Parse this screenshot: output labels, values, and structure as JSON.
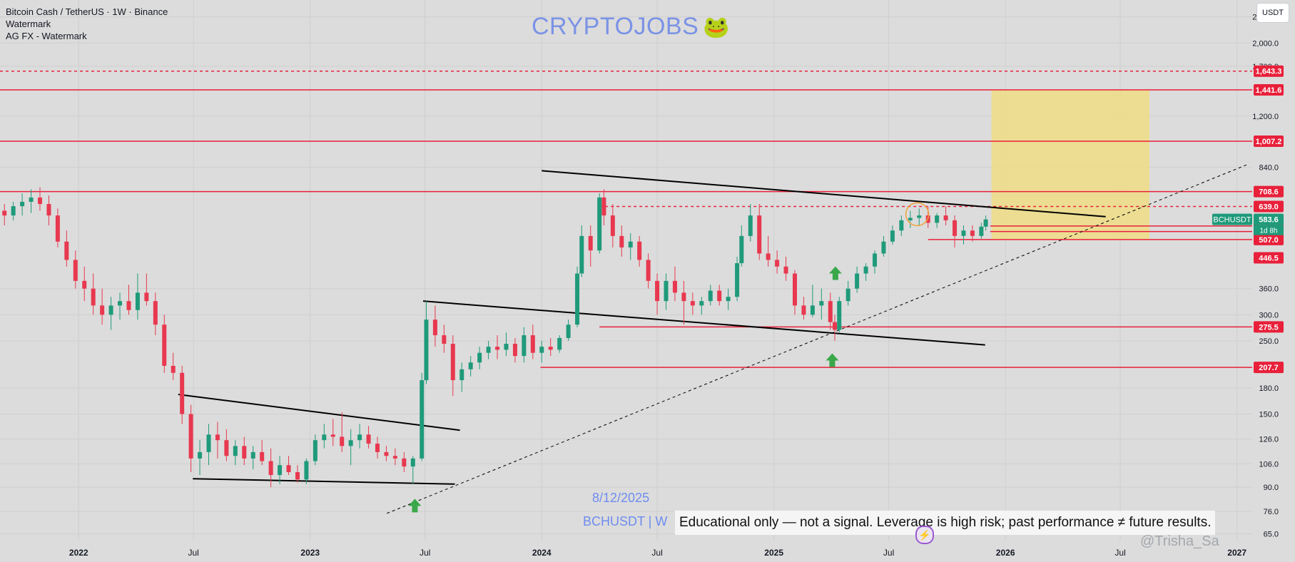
{
  "header": {
    "symbol_line": "Bitcoin Cash / TetherUS · 1W · Binance",
    "indicator_1": "Watermark",
    "indicator_2": "AG FX - Watermark"
  },
  "brand": {
    "text": "CRYPTOJOBS",
    "emoji": "🐸",
    "color": "#7b93e6"
  },
  "currency_button": "USDT",
  "stamp": {
    "date": "8/12/2025",
    "symbol": "BCHUSDT | W"
  },
  "disclaimer": "Educational only — not a signal. Leverage is high risk; past performance ≠ future results.",
  "bottom_watermark": "@Trisha_Sa",
  "colors": {
    "bg": "#dcdcdc",
    "up": "#1f9a7a",
    "down": "#e8384f",
    "level": "#e8203a",
    "trend": "#000000",
    "target_zone": "#f3de7a",
    "price_tag": "#1f9a7a",
    "arrow": "#3aa84a"
  },
  "chart_data": {
    "type": "candlestick",
    "title": "Bitcoin Cash / TetherUS · 1W · Binance",
    "symbol": "BCHUSDT",
    "y_scale": "log",
    "ylim": [
      62,
      2700
    ],
    "xlim": [
      "2021-08-30",
      "2027-01-25"
    ],
    "x_ticks": [
      {
        "date": "2022-01-01",
        "label": "2022"
      },
      {
        "date": "2022-07-01",
        "label": "Jul"
      },
      {
        "date": "2023-01-01",
        "label": "2023"
      },
      {
        "date": "2023-07-01",
        "label": "Jul"
      },
      {
        "date": "2024-01-01",
        "label": "2024"
      },
      {
        "date": "2024-07-01",
        "label": "Jul"
      },
      {
        "date": "2025-01-01",
        "label": "2025"
      },
      {
        "date": "2025-07-01",
        "label": "Jul"
      },
      {
        "date": "2026-01-01",
        "label": "2026"
      },
      {
        "date": "2026-07-01",
        "label": "Jul"
      },
      {
        "date": "2027-01-01",
        "label": "2027"
      }
    ],
    "y_ticks": [
      65,
      76,
      90,
      106,
      126,
      150,
      180,
      250,
      300,
      360,
      840,
      1200,
      1700,
      2000,
      2400
    ],
    "y_tick_labels": [
      "65.0",
      "76.0",
      "90.0",
      "106.0",
      "126.0",
      "150.0",
      "180.0",
      "250.0",
      "300.0",
      "360.0",
      "840.0",
      "1,200.0",
      "1,700.0",
      "2,000.0",
      "2,400.0"
    ],
    "horizontal_levels": [
      {
        "value": 1643.3,
        "label": "1,643.3",
        "style": "dashed"
      },
      {
        "value": 1441.6,
        "label": "1,441.6",
        "style": "solid"
      },
      {
        "value": 1007.2,
        "label": "1,007.2",
        "style": "solid"
      },
      {
        "value": 708.6,
        "label": "708.6",
        "style": "solid"
      },
      {
        "value": 639.0,
        "label": "639.0",
        "style": "dashed",
        "from": "2024-04-01"
      },
      {
        "value": 557.5,
        "label": "557.5",
        "style": "solid",
        "from": "2025-12-08"
      },
      {
        "value": 536.2,
        "label": "536.2",
        "style": "solid",
        "from": "2025-12-08"
      },
      {
        "value": 507.0,
        "label": "507.0",
        "style": "solid",
        "from": "2025-09-01"
      },
      {
        "value": 446.5,
        "label": "446.5",
        "style": "none"
      },
      {
        "value": 275.5,
        "label": "275.5",
        "style": "solid",
        "from": "2024-04-01"
      },
      {
        "value": 207.7,
        "label": "207.7",
        "style": "solid",
        "from": "2023-12-30"
      }
    ],
    "current_price": {
      "value": 583.6,
      "label": "583.6",
      "symbol": "BCHUSDT",
      "countdown": "1d 8h"
    },
    "trendlines": [
      {
        "from": [
          "2022-06-07",
          172
        ],
        "to": [
          "2023-08-25",
          134
        ],
        "style": "solid"
      },
      {
        "from": [
          "2022-06-30",
          95.5
        ],
        "to": [
          "2023-08-17",
          92
        ],
        "style": "solid"
      },
      {
        "from": [
          "2023-06-28",
          330
        ],
        "to": [
          "2025-11-30",
          243
        ],
        "style": "solid"
      },
      {
        "from": [
          "2024-01-01",
          820
        ],
        "to": [
          "2026-06-08",
          595
        ],
        "style": "solid"
      },
      {
        "from": [
          "2023-05-02",
          75
        ],
        "to": [
          "2027-01-20",
          860
        ],
        "style": "dashed"
      }
    ],
    "target_zone": {
      "from": "2025-12-10",
      "to": "2026-08-16",
      "low": 507,
      "high": 1441.6
    },
    "arrows": [
      {
        "date": "2023-06-15",
        "value": 79,
        "dir": "up"
      },
      {
        "date": "2025-04-03",
        "value": 218,
        "dir": "up"
      },
      {
        "date": "2025-04-08",
        "value": 400,
        "dir": "up"
      }
    ],
    "circle": {
      "date": "2025-08-15",
      "value": 605
    },
    "candles": [
      {
        "t": "2021-09-06",
        "o": 620,
        "h": 650,
        "l": 560,
        "c": 600
      },
      {
        "t": "2021-09-20",
        "o": 600,
        "h": 660,
        "l": 580,
        "c": 640
      },
      {
        "t": "2021-10-04",
        "o": 640,
        "h": 700,
        "l": 600,
        "c": 660
      },
      {
        "t": "2021-10-18",
        "o": 660,
        "h": 720,
        "l": 610,
        "c": 680
      },
      {
        "t": "2021-11-01",
        "o": 680,
        "h": 730,
        "l": 620,
        "c": 650
      },
      {
        "t": "2021-11-15",
        "o": 650,
        "h": 690,
        "l": 560,
        "c": 600
      },
      {
        "t": "2021-11-29",
        "o": 600,
        "h": 630,
        "l": 480,
        "c": 500
      },
      {
        "t": "2021-12-13",
        "o": 500,
        "h": 540,
        "l": 420,
        "c": 440
      },
      {
        "t": "2021-12-27",
        "o": 440,
        "h": 470,
        "l": 360,
        "c": 380
      },
      {
        "t": "2022-01-10",
        "o": 380,
        "h": 420,
        "l": 330,
        "c": 360
      },
      {
        "t": "2022-01-24",
        "o": 360,
        "h": 400,
        "l": 300,
        "c": 320
      },
      {
        "t": "2022-02-07",
        "o": 320,
        "h": 360,
        "l": 280,
        "c": 300
      },
      {
        "t": "2022-02-21",
        "o": 300,
        "h": 340,
        "l": 270,
        "c": 320
      },
      {
        "t": "2022-03-07",
        "o": 320,
        "h": 350,
        "l": 290,
        "c": 330
      },
      {
        "t": "2022-03-21",
        "o": 330,
        "h": 370,
        "l": 300,
        "c": 310
      },
      {
        "t": "2022-04-04",
        "o": 310,
        "h": 400,
        "l": 290,
        "c": 350
      },
      {
        "t": "2022-04-18",
        "o": 350,
        "h": 400,
        "l": 320,
        "c": 330
      },
      {
        "t": "2022-05-02",
        "o": 330,
        "h": 350,
        "l": 260,
        "c": 280
      },
      {
        "t": "2022-05-16",
        "o": 280,
        "h": 300,
        "l": 200,
        "c": 210
      },
      {
        "t": "2022-05-30",
        "o": 210,
        "h": 230,
        "l": 190,
        "c": 200
      },
      {
        "t": "2022-06-13",
        "o": 200,
        "h": 210,
        "l": 140,
        "c": 150
      },
      {
        "t": "2022-06-27",
        "o": 150,
        "h": 160,
        "l": 100,
        "c": 110
      },
      {
        "t": "2022-07-11",
        "o": 110,
        "h": 125,
        "l": 98,
        "c": 115
      },
      {
        "t": "2022-07-25",
        "o": 115,
        "h": 140,
        "l": 105,
        "c": 130
      },
      {
        "t": "2022-08-08",
        "o": 130,
        "h": 142,
        "l": 110,
        "c": 125
      },
      {
        "t": "2022-08-22",
        "o": 125,
        "h": 135,
        "l": 108,
        "c": 112
      },
      {
        "t": "2022-09-05",
        "o": 112,
        "h": 125,
        "l": 105,
        "c": 120
      },
      {
        "t": "2022-09-19",
        "o": 120,
        "h": 128,
        "l": 105,
        "c": 110
      },
      {
        "t": "2022-10-03",
        "o": 110,
        "h": 120,
        "l": 102,
        "c": 115
      },
      {
        "t": "2022-10-17",
        "o": 115,
        "h": 125,
        "l": 105,
        "c": 108
      },
      {
        "t": "2022-10-31",
        "o": 108,
        "h": 118,
        "l": 90,
        "c": 98
      },
      {
        "t": "2022-11-14",
        "o": 98,
        "h": 112,
        "l": 92,
        "c": 105
      },
      {
        "t": "2022-11-28",
        "o": 105,
        "h": 112,
        "l": 98,
        "c": 100
      },
      {
        "t": "2022-12-12",
        "o": 100,
        "h": 105,
        "l": 93,
        "c": 95
      },
      {
        "t": "2022-12-26",
        "o": 95,
        "h": 110,
        "l": 92,
        "c": 108
      },
      {
        "t": "2023-01-09",
        "o": 108,
        "h": 130,
        "l": 105,
        "c": 125
      },
      {
        "t": "2023-01-23",
        "o": 125,
        "h": 140,
        "l": 118,
        "c": 130
      },
      {
        "t": "2023-02-06",
        "o": 130,
        "h": 145,
        "l": 120,
        "c": 128
      },
      {
        "t": "2023-02-20",
        "o": 128,
        "h": 152,
        "l": 115,
        "c": 120
      },
      {
        "t": "2023-03-06",
        "o": 120,
        "h": 135,
        "l": 105,
        "c": 125
      },
      {
        "t": "2023-03-20",
        "o": 125,
        "h": 140,
        "l": 118,
        "c": 130
      },
      {
        "t": "2023-04-03",
        "o": 130,
        "h": 138,
        "l": 118,
        "c": 122
      },
      {
        "t": "2023-04-17",
        "o": 122,
        "h": 128,
        "l": 110,
        "c": 115
      },
      {
        "t": "2023-05-01",
        "o": 115,
        "h": 120,
        "l": 108,
        "c": 112
      },
      {
        "t": "2023-05-15",
        "o": 112,
        "h": 118,
        "l": 105,
        "c": 110
      },
      {
        "t": "2023-05-29",
        "o": 110,
        "h": 115,
        "l": 100,
        "c": 104
      },
      {
        "t": "2023-06-12",
        "o": 104,
        "h": 112,
        "l": 92,
        "c": 110
      },
      {
        "t": "2023-06-26",
        "o": 110,
        "h": 200,
        "l": 108,
        "c": 190
      },
      {
        "t": "2023-07-03",
        "o": 190,
        "h": 330,
        "l": 185,
        "c": 290
      },
      {
        "t": "2023-07-17",
        "o": 290,
        "h": 320,
        "l": 240,
        "c": 260
      },
      {
        "t": "2023-07-31",
        "o": 260,
        "h": 280,
        "l": 230,
        "c": 245
      },
      {
        "t": "2023-08-14",
        "o": 245,
        "h": 260,
        "l": 170,
        "c": 190
      },
      {
        "t": "2023-08-28",
        "o": 190,
        "h": 215,
        "l": 175,
        "c": 205
      },
      {
        "t": "2023-09-11",
        "o": 205,
        "h": 225,
        "l": 195,
        "c": 215
      },
      {
        "t": "2023-09-25",
        "o": 215,
        "h": 240,
        "l": 205,
        "c": 230
      },
      {
        "t": "2023-10-09",
        "o": 230,
        "h": 250,
        "l": 220,
        "c": 240
      },
      {
        "t": "2023-10-23",
        "o": 240,
        "h": 260,
        "l": 220,
        "c": 235
      },
      {
        "t": "2023-11-06",
        "o": 235,
        "h": 265,
        "l": 225,
        "c": 245
      },
      {
        "t": "2023-11-20",
        "o": 245,
        "h": 255,
        "l": 215,
        "c": 225
      },
      {
        "t": "2023-12-04",
        "o": 225,
        "h": 275,
        "l": 215,
        "c": 260
      },
      {
        "t": "2023-12-18",
        "o": 260,
        "h": 280,
        "l": 220,
        "c": 230
      },
      {
        "t": "2024-01-01",
        "o": 230,
        "h": 250,
        "l": 215,
        "c": 240
      },
      {
        "t": "2024-01-15",
        "o": 240,
        "h": 255,
        "l": 225,
        "c": 235
      },
      {
        "t": "2024-01-29",
        "o": 235,
        "h": 260,
        "l": 230,
        "c": 255
      },
      {
        "t": "2024-02-12",
        "o": 255,
        "h": 290,
        "l": 250,
        "c": 280
      },
      {
        "t": "2024-02-26",
        "o": 280,
        "h": 420,
        "l": 275,
        "c": 400
      },
      {
        "t": "2024-03-04",
        "o": 400,
        "h": 560,
        "l": 390,
        "c": 520
      },
      {
        "t": "2024-03-18",
        "o": 520,
        "h": 560,
        "l": 420,
        "c": 470
      },
      {
        "t": "2024-04-01",
        "o": 470,
        "h": 700,
        "l": 460,
        "c": 680
      },
      {
        "t": "2024-04-08",
        "o": 680,
        "h": 720,
        "l": 560,
        "c": 600
      },
      {
        "t": "2024-04-22",
        "o": 600,
        "h": 650,
        "l": 480,
        "c": 520
      },
      {
        "t": "2024-05-06",
        "o": 520,
        "h": 560,
        "l": 450,
        "c": 480
      },
      {
        "t": "2024-05-20",
        "o": 480,
        "h": 530,
        "l": 440,
        "c": 500
      },
      {
        "t": "2024-06-03",
        "o": 500,
        "h": 520,
        "l": 420,
        "c": 440
      },
      {
        "t": "2024-06-17",
        "o": 440,
        "h": 460,
        "l": 360,
        "c": 380
      },
      {
        "t": "2024-07-01",
        "o": 380,
        "h": 400,
        "l": 300,
        "c": 330
      },
      {
        "t": "2024-07-15",
        "o": 330,
        "h": 400,
        "l": 310,
        "c": 380
      },
      {
        "t": "2024-07-29",
        "o": 380,
        "h": 420,
        "l": 330,
        "c": 350
      },
      {
        "t": "2024-08-12",
        "o": 350,
        "h": 380,
        "l": 280,
        "c": 330
      },
      {
        "t": "2024-08-26",
        "o": 330,
        "h": 350,
        "l": 300,
        "c": 320
      },
      {
        "t": "2024-09-09",
        "o": 320,
        "h": 340,
        "l": 300,
        "c": 330
      },
      {
        "t": "2024-09-23",
        "o": 330,
        "h": 370,
        "l": 320,
        "c": 355
      },
      {
        "t": "2024-10-07",
        "o": 355,
        "h": 370,
        "l": 320,
        "c": 330
      },
      {
        "t": "2024-10-21",
        "o": 330,
        "h": 360,
        "l": 310,
        "c": 340
      },
      {
        "t": "2024-11-04",
        "o": 340,
        "h": 450,
        "l": 330,
        "c": 430
      },
      {
        "t": "2024-11-11",
        "o": 430,
        "h": 560,
        "l": 420,
        "c": 520
      },
      {
        "t": "2024-11-25",
        "o": 520,
        "h": 650,
        "l": 500,
        "c": 600
      },
      {
        "t": "2024-12-09",
        "o": 600,
        "h": 650,
        "l": 440,
        "c": 460
      },
      {
        "t": "2024-12-23",
        "o": 460,
        "h": 520,
        "l": 420,
        "c": 440
      },
      {
        "t": "2025-01-06",
        "o": 440,
        "h": 470,
        "l": 400,
        "c": 420
      },
      {
        "t": "2025-01-20",
        "o": 420,
        "h": 450,
        "l": 380,
        "c": 400
      },
      {
        "t": "2025-02-03",
        "o": 400,
        "h": 410,
        "l": 300,
        "c": 320
      },
      {
        "t": "2025-02-17",
        "o": 320,
        "h": 340,
        "l": 290,
        "c": 300
      },
      {
        "t": "2025-03-03",
        "o": 300,
        "h": 370,
        "l": 295,
        "c": 320
      },
      {
        "t": "2025-03-17",
        "o": 320,
        "h": 360,
        "l": 290,
        "c": 330
      },
      {
        "t": "2025-03-31",
        "o": 330,
        "h": 350,
        "l": 270,
        "c": 285
      },
      {
        "t": "2025-04-07",
        "o": 285,
        "h": 300,
        "l": 250,
        "c": 270
      },
      {
        "t": "2025-04-14",
        "o": 270,
        "h": 340,
        "l": 265,
        "c": 330
      },
      {
        "t": "2025-04-28",
        "o": 330,
        "h": 380,
        "l": 320,
        "c": 360
      },
      {
        "t": "2025-05-12",
        "o": 360,
        "h": 420,
        "l": 350,
        "c": 400
      },
      {
        "t": "2025-05-26",
        "o": 400,
        "h": 430,
        "l": 380,
        "c": 420
      },
      {
        "t": "2025-06-09",
        "o": 420,
        "h": 470,
        "l": 400,
        "c": 460
      },
      {
        "t": "2025-06-23",
        "o": 460,
        "h": 520,
        "l": 450,
        "c": 500
      },
      {
        "t": "2025-07-07",
        "o": 500,
        "h": 560,
        "l": 490,
        "c": 540
      },
      {
        "t": "2025-07-21",
        "o": 540,
        "h": 600,
        "l": 520,
        "c": 580
      },
      {
        "t": "2025-08-04",
        "o": 580,
        "h": 620,
        "l": 550,
        "c": 590
      },
      {
        "t": "2025-08-18",
        "o": 590,
        "h": 630,
        "l": 560,
        "c": 600
      },
      {
        "t": "2025-09-01",
        "o": 600,
        "h": 640,
        "l": 550,
        "c": 570
      },
      {
        "t": "2025-09-15",
        "o": 570,
        "h": 610,
        "l": 550,
        "c": 600
      },
      {
        "t": "2025-09-29",
        "o": 600,
        "h": 640,
        "l": 560,
        "c": 580
      },
      {
        "t": "2025-10-13",
        "o": 580,
        "h": 600,
        "l": 480,
        "c": 520
      },
      {
        "t": "2025-10-27",
        "o": 520,
        "h": 560,
        "l": 490,
        "c": 540
      },
      {
        "t": "2025-11-10",
        "o": 540,
        "h": 560,
        "l": 500,
        "c": 520
      },
      {
        "t": "2025-11-24",
        "o": 520,
        "h": 570,
        "l": 510,
        "c": 555
      },
      {
        "t": "2025-12-01",
        "o": 555,
        "h": 600,
        "l": 540,
        "c": 583.6
      }
    ]
  }
}
